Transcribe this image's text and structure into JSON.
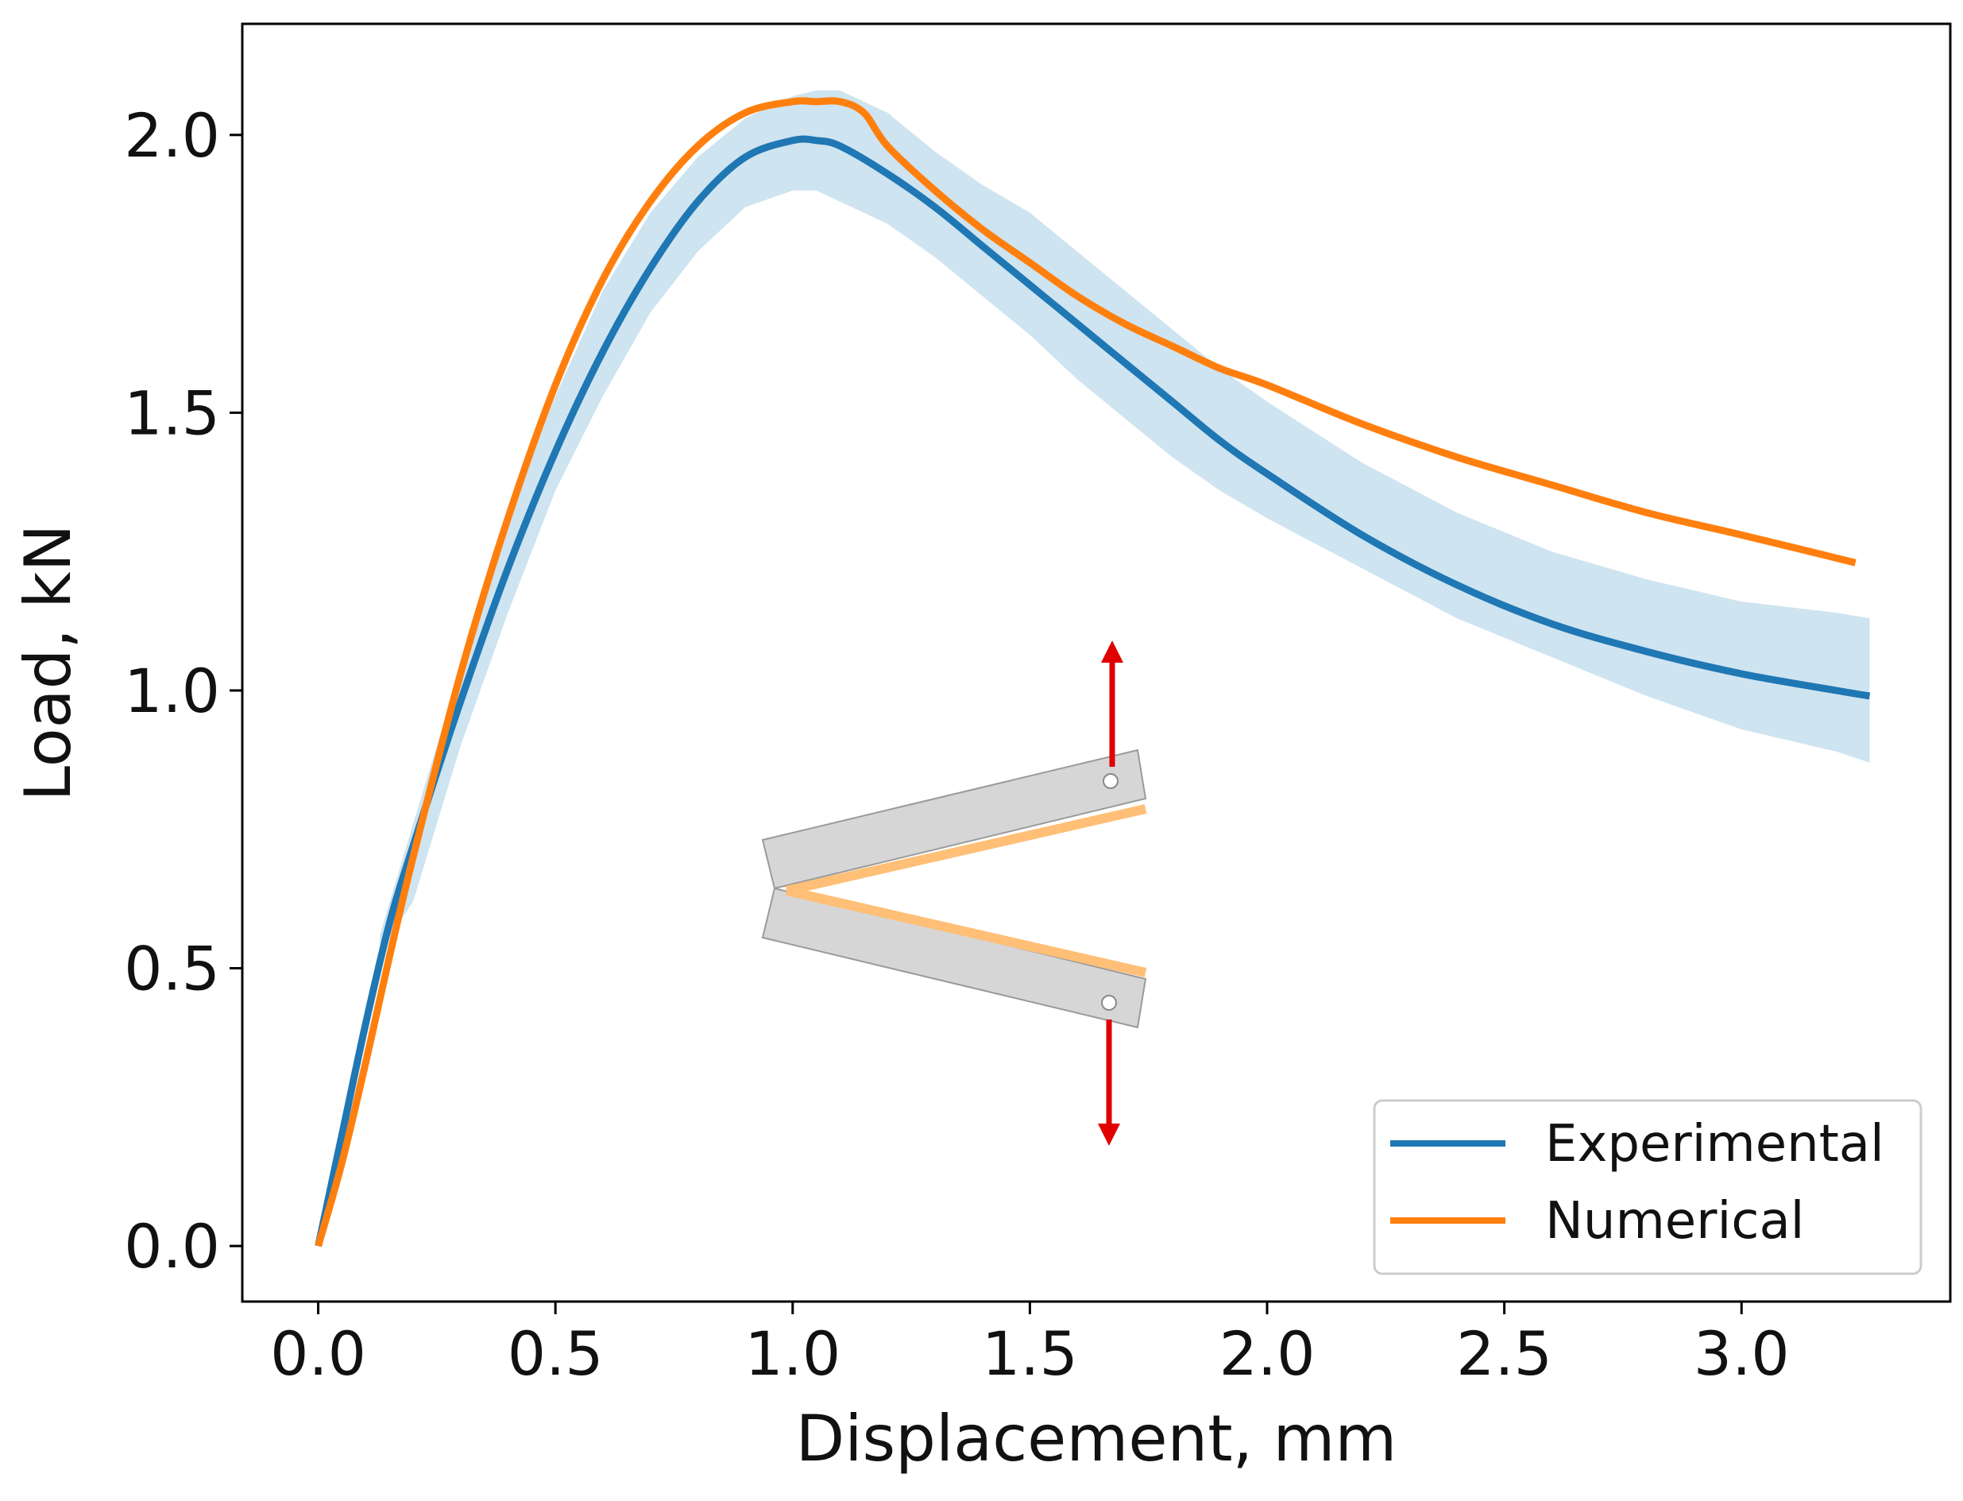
{
  "chart_data": {
    "type": "line",
    "title": "",
    "xlabel": "Displacement, mm",
    "ylabel": "Load, kN",
    "xlim": [
      -0.16,
      3.44
    ],
    "ylim": [
      -0.1,
      2.2
    ],
    "grid": false,
    "legend_position": "bottom-right",
    "x_ticks": [
      0.0,
      0.5,
      1.0,
      1.5,
      2.0,
      2.5,
      3.0
    ],
    "x_tick_labels": [
      "0.0",
      "0.5",
      "1.0",
      "1.5",
      "2.0",
      "2.5",
      "3.0"
    ],
    "y_ticks": [
      0.0,
      0.5,
      1.0,
      1.5,
      2.0
    ],
    "y_tick_labels": [
      "0.0",
      "0.5",
      "1.0",
      "1.5",
      "2.0"
    ],
    "series": [
      {
        "name": "Experimental",
        "color": "#1f77b4",
        "x": [
          0.0,
          0.05,
          0.1,
          0.15,
          0.2,
          0.3,
          0.4,
          0.5,
          0.6,
          0.7,
          0.8,
          0.9,
          1.0,
          1.05,
          1.1,
          1.2,
          1.3,
          1.4,
          1.5,
          1.6,
          1.7,
          1.8,
          1.9,
          2.0,
          2.2,
          2.4,
          2.6,
          2.8,
          3.0,
          3.2,
          3.27
        ],
        "y": [
          0.0,
          0.2,
          0.4,
          0.58,
          0.72,
          0.98,
          1.22,
          1.43,
          1.61,
          1.76,
          1.88,
          1.96,
          1.99,
          1.99,
          1.98,
          1.93,
          1.87,
          1.8,
          1.73,
          1.66,
          1.59,
          1.52,
          1.45,
          1.39,
          1.28,
          1.19,
          1.12,
          1.07,
          1.03,
          1.0,
          0.99
        ]
      },
      {
        "name": "Numerical",
        "color": "#ff7f0e",
        "x": [
          0.0,
          0.05,
          0.1,
          0.15,
          0.2,
          0.3,
          0.4,
          0.5,
          0.6,
          0.7,
          0.8,
          0.9,
          1.0,
          1.05,
          1.1,
          1.15,
          1.2,
          1.3,
          1.4,
          1.5,
          1.6,
          1.7,
          1.8,
          1.9,
          2.0,
          2.2,
          2.4,
          2.6,
          2.8,
          3.0,
          3.24
        ],
        "y": [
          0.0,
          0.15,
          0.33,
          0.52,
          0.7,
          1.03,
          1.31,
          1.55,
          1.74,
          1.88,
          1.98,
          2.04,
          2.06,
          2.06,
          2.06,
          2.04,
          1.98,
          1.9,
          1.83,
          1.77,
          1.71,
          1.66,
          1.62,
          1.58,
          1.55,
          1.48,
          1.42,
          1.37,
          1.32,
          1.28,
          1.23
        ]
      }
    ],
    "confidence_band": {
      "series": "Experimental",
      "color": "#a6cee3",
      "x": [
        0.13,
        0.2,
        0.3,
        0.4,
        0.5,
        0.6,
        0.7,
        0.8,
        0.9,
        1.0,
        1.05,
        1.1,
        1.2,
        1.3,
        1.4,
        1.5,
        1.6,
        1.7,
        1.8,
        1.9,
        2.0,
        2.2,
        2.4,
        2.6,
        2.8,
        3.0,
        3.2,
        3.27
      ],
      "lower": [
        0.53,
        0.62,
        0.9,
        1.14,
        1.36,
        1.53,
        1.68,
        1.79,
        1.87,
        1.9,
        1.9,
        1.88,
        1.84,
        1.78,
        1.71,
        1.64,
        1.56,
        1.49,
        1.42,
        1.36,
        1.31,
        1.22,
        1.13,
        1.06,
        0.99,
        0.93,
        0.89,
        0.87
      ],
      "upper": [
        0.56,
        0.76,
        1.04,
        1.32,
        1.53,
        1.72,
        1.86,
        1.96,
        2.03,
        2.07,
        2.08,
        2.08,
        2.04,
        1.97,
        1.91,
        1.86,
        1.79,
        1.72,
        1.65,
        1.58,
        1.52,
        1.41,
        1.32,
        1.25,
        1.2,
        1.16,
        1.14,
        1.13
      ]
    },
    "annotations": [
      {
        "type": "specimen-schematic",
        "description_name": "DCB specimen with opening forces"
      }
    ]
  }
}
